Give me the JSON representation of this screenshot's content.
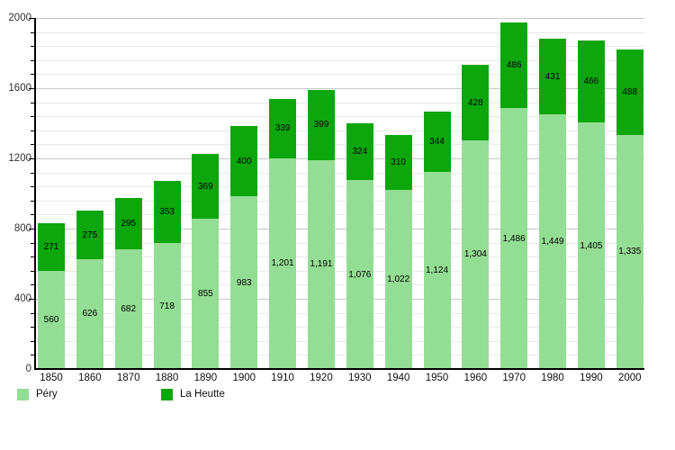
{
  "chart_data": {
    "type": "bar",
    "stacked": true,
    "categories": [
      "1850",
      "1860",
      "1870",
      "1880",
      "1890",
      "1900",
      "1910",
      "1920",
      "1930",
      "1940",
      "1950",
      "1960",
      "1970",
      "1980",
      "1990",
      "2000"
    ],
    "series": [
      {
        "name": "Péry",
        "color": "#94DD94",
        "values": [
          560,
          626,
          682,
          718,
          855,
          983,
          1201,
          1191,
          1076,
          1022,
          1124,
          1304,
          1486,
          1449,
          1405,
          1335
        ]
      },
      {
        "name": "La Heutte",
        "color": "#0DA60D",
        "values": [
          271,
          275,
          295,
          353,
          369,
          400,
          339,
          399,
          324,
          310,
          344,
          428,
          486,
          431,
          466,
          488
        ]
      }
    ],
    "title": "",
    "xlabel": "",
    "ylabel": "",
    "ylim": [
      0,
      2000
    ],
    "y_major_step": 400,
    "y_minor_step": 80,
    "y_tick_labels": [
      "0",
      "400",
      "800",
      "1200",
      "1600",
      "2000"
    ],
    "grid": true,
    "value_labels": true,
    "value_label_format": "thousands-comma",
    "legend_position": "bottom-left",
    "colors": {
      "background": "#FFFFFF",
      "axis": "#000000",
      "grid_minor": "#E9E9E9",
      "grid_major": "#C8C8C8",
      "value_label_text": "#000000",
      "axis_label_text": "#333333"
    }
  }
}
